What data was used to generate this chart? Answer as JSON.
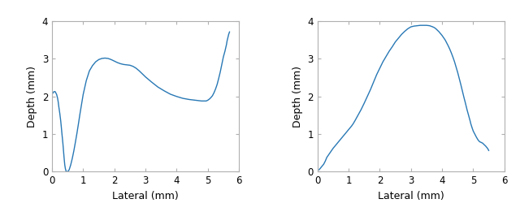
{
  "line_color": "#2878b5",
  "line_width": 1.0,
  "xlim": [
    0,
    6
  ],
  "ylim": [
    0,
    4
  ],
  "xlabel": "Lateral (mm)",
  "ylabel": "Depth (mm)",
  "xticks": [
    0,
    1,
    2,
    3,
    4,
    5,
    6
  ],
  "yticks": [
    0,
    1,
    2,
    3,
    4
  ],
  "background_color": "#ffffff",
  "panel1": {
    "x": [
      0.0,
      0.02,
      0.05,
      0.08,
      0.1,
      0.12,
      0.15,
      0.18,
      0.2,
      0.22,
      0.25,
      0.28,
      0.3,
      0.32,
      0.35,
      0.37,
      0.39,
      0.41,
      0.43,
      0.45,
      0.47,
      0.5,
      0.55,
      0.6,
      0.65,
      0.7,
      0.75,
      0.8,
      0.85,
      0.9,
      0.95,
      1.0,
      1.1,
      1.2,
      1.3,
      1.4,
      1.5,
      1.6,
      1.7,
      1.8,
      1.9,
      2.0,
      2.1,
      2.2,
      2.3,
      2.4,
      2.5,
      2.6,
      2.7,
      2.8,
      2.9,
      3.0,
      3.2,
      3.4,
      3.6,
      3.8,
      4.0,
      4.2,
      4.4,
      4.6,
      4.7,
      4.8,
      4.85,
      4.9,
      4.95,
      5.0,
      5.05,
      5.1,
      5.15,
      5.2,
      5.25,
      5.3,
      5.35,
      5.4,
      5.45,
      5.5,
      5.55,
      5.6,
      5.62,
      5.65,
      5.67,
      5.7
    ],
    "y": [
      2.05,
      2.08,
      2.12,
      2.13,
      2.13,
      2.1,
      2.05,
      1.95,
      1.85,
      1.72,
      1.55,
      1.35,
      1.18,
      1.0,
      0.75,
      0.55,
      0.35,
      0.18,
      0.08,
      0.02,
      0.0,
      0.0,
      0.05,
      0.18,
      0.35,
      0.55,
      0.78,
      1.02,
      1.28,
      1.55,
      1.8,
      2.05,
      2.42,
      2.68,
      2.82,
      2.92,
      2.98,
      3.01,
      3.02,
      3.01,
      2.98,
      2.94,
      2.9,
      2.87,
      2.85,
      2.84,
      2.83,
      2.8,
      2.75,
      2.68,
      2.6,
      2.52,
      2.38,
      2.25,
      2.15,
      2.06,
      2.0,
      1.95,
      1.92,
      1.9,
      1.89,
      1.88,
      1.88,
      1.88,
      1.88,
      1.9,
      1.93,
      1.97,
      2.02,
      2.1,
      2.2,
      2.32,
      2.48,
      2.65,
      2.85,
      3.05,
      3.2,
      3.38,
      3.48,
      3.58,
      3.65,
      3.72
    ]
  },
  "panel2": {
    "x": [
      0.05,
      0.1,
      0.15,
      0.2,
      0.25,
      0.3,
      0.4,
      0.5,
      0.6,
      0.7,
      0.8,
      0.9,
      1.0,
      1.1,
      1.15,
      1.2,
      1.3,
      1.4,
      1.5,
      1.6,
      1.7,
      1.8,
      1.9,
      2.0,
      2.1,
      2.2,
      2.3,
      2.4,
      2.5,
      2.6,
      2.7,
      2.8,
      2.9,
      3.0,
      3.1,
      3.2,
      3.3,
      3.4,
      3.5,
      3.6,
      3.7,
      3.75,
      3.8,
      3.85,
      3.9,
      3.95,
      4.0,
      4.05,
      4.1,
      4.15,
      4.2,
      4.25,
      4.3,
      4.35,
      4.4,
      4.45,
      4.5,
      4.55,
      4.6,
      4.65,
      4.7,
      4.75,
      4.8,
      4.85,
      4.9,
      4.92,
      4.95,
      4.97,
      5.0,
      5.05,
      5.1,
      5.15,
      5.2,
      5.25,
      5.3,
      5.35,
      5.4,
      5.42,
      5.44,
      5.46,
      5.48,
      5.5
    ],
    "y": [
      0.05,
      0.1,
      0.15,
      0.2,
      0.28,
      0.38,
      0.5,
      0.62,
      0.72,
      0.82,
      0.92,
      1.02,
      1.12,
      1.22,
      1.28,
      1.35,
      1.5,
      1.65,
      1.82,
      2.0,
      2.18,
      2.38,
      2.58,
      2.75,
      2.92,
      3.06,
      3.2,
      3.32,
      3.45,
      3.55,
      3.65,
      3.73,
      3.8,
      3.85,
      3.87,
      3.88,
      3.89,
      3.89,
      3.89,
      3.88,
      3.85,
      3.83,
      3.8,
      3.76,
      3.72,
      3.67,
      3.62,
      3.56,
      3.5,
      3.42,
      3.34,
      3.25,
      3.15,
      3.04,
      2.92,
      2.78,
      2.64,
      2.48,
      2.32,
      2.15,
      1.98,
      1.82,
      1.65,
      1.5,
      1.35,
      1.28,
      1.2,
      1.15,
      1.08,
      1.0,
      0.92,
      0.85,
      0.8,
      0.78,
      0.76,
      0.72,
      0.68,
      0.66,
      0.64,
      0.62,
      0.59,
      0.56
    ]
  }
}
